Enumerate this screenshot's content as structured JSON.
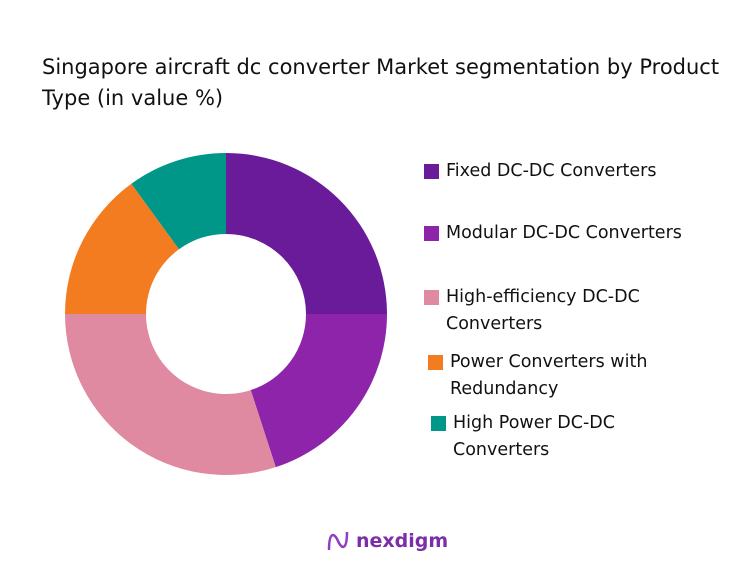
{
  "chart_data": {
    "type": "pie",
    "donut": true,
    "title": "Singapore aircraft dc converter Market segmentation by Product Type (in value %)",
    "categories": [
      "Fixed DC-DC Converters",
      "Modular DC-DC Converters",
      "High-efficiency DC-DC Converters",
      "Power Converters with Redundancy",
      "High Power DC-DC Converters"
    ],
    "values": [
      25,
      20,
      30,
      15,
      10
    ],
    "colors": [
      "#6a1b9a",
      "#8e24aa",
      "#e08aa2",
      "#f47c20",
      "#009688"
    ],
    "legend_position": "right"
  },
  "brand": {
    "name": "nexdigm"
  }
}
